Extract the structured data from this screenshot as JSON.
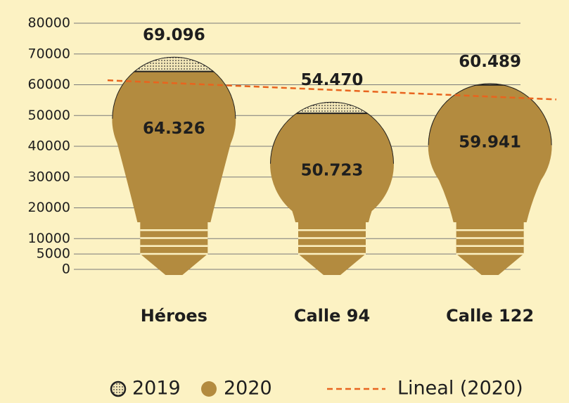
{
  "chart_data": {
    "type": "pictograph-bar",
    "categories": [
      "Héroes",
      "Calle 94",
      "Calle 122"
    ],
    "series": [
      {
        "name": "2019",
        "color": "#f3e7b8",
        "values": [
          69096,
          54470,
          60489
        ],
        "value_labels": [
          "69.096",
          "54.470",
          "60.489"
        ]
      },
      {
        "name": "2020",
        "color": "#b38b3f",
        "values": [
          64326,
          50723,
          59941
        ],
        "value_labels": [
          "64.326",
          "50.723",
          "59.941"
        ]
      }
    ],
    "trendline": {
      "name": "Lineal (2020)",
      "color": "#e8641e"
    },
    "ylim": [
      0,
      80000
    ],
    "yticks": [
      0,
      5000,
      10000,
      20000,
      30000,
      40000,
      50000,
      60000,
      70000,
      80000
    ],
    "grid": true
  }
}
